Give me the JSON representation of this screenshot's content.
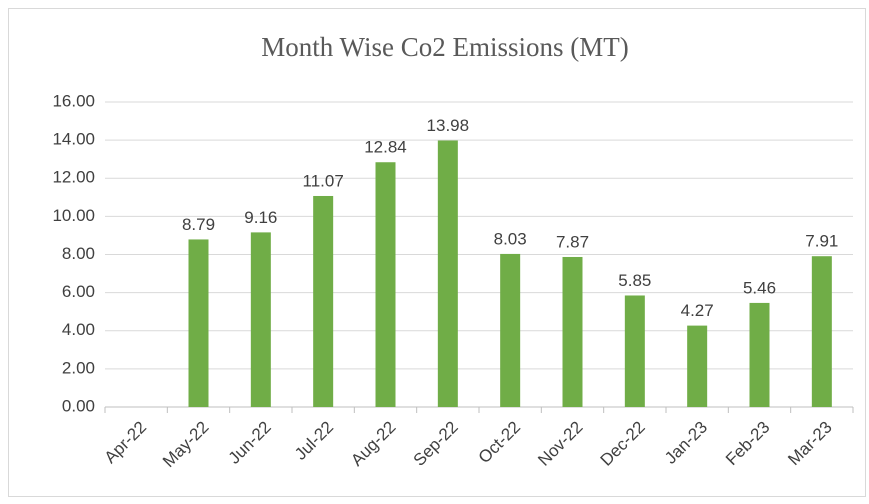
{
  "chart_data": {
    "type": "bar",
    "title": "Month Wise Co2 Emissions (MT)",
    "categories": [
      "Apr-22",
      "May-22",
      "Jun-22",
      "Jul-22",
      "Aug-22",
      "Sep-22",
      "Oct-22",
      "Nov-22",
      "Dec-22",
      "Jan-23",
      "Feb-23",
      "Mar-23"
    ],
    "values": [
      null,
      8.79,
      9.16,
      11.07,
      12.84,
      13.98,
      8.03,
      7.87,
      5.85,
      4.27,
      5.46,
      7.91
    ],
    "color": "#70ad47",
    "ylim": [
      0,
      16
    ],
    "yticks": [
      {
        "value": 0,
        "label": "0.00"
      },
      {
        "value": 2,
        "label": "2.00"
      },
      {
        "value": 4,
        "label": "4.00"
      },
      {
        "value": 6,
        "label": "6.00"
      },
      {
        "value": 8,
        "label": "8.00"
      },
      {
        "value": 10,
        "label": "10.00"
      },
      {
        "value": 12,
        "label": "12.00"
      },
      {
        "value": 14,
        "label": "14.00"
      },
      {
        "value": 16,
        "label": "16.00"
      }
    ],
    "grid": true
  }
}
